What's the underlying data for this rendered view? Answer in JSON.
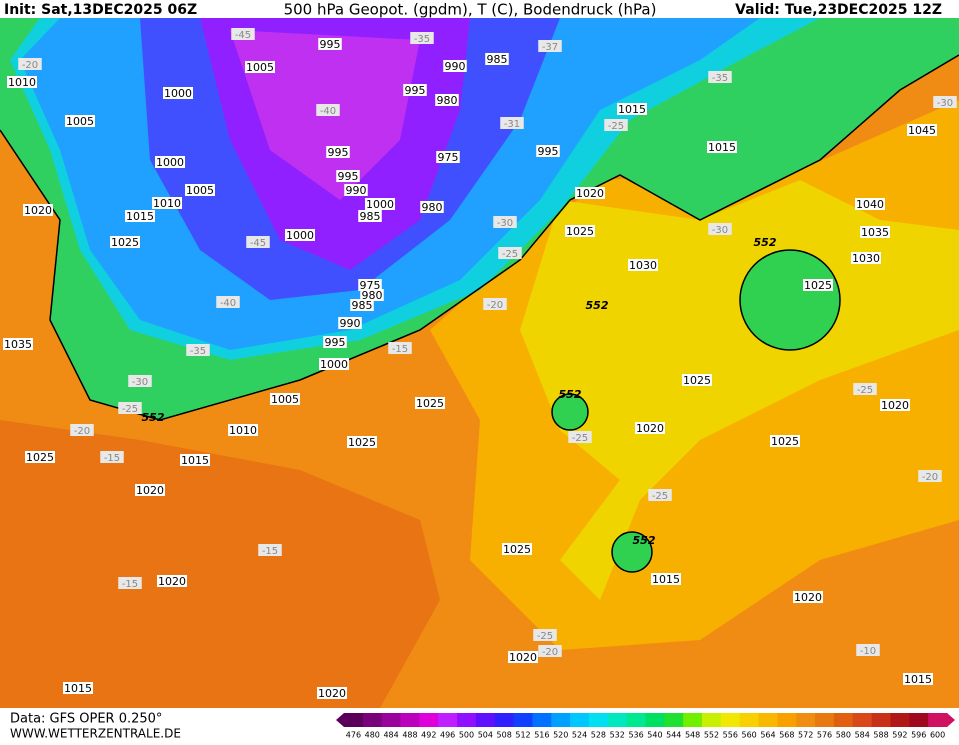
{
  "header": {
    "init": "Init: Sat,13DEC2025 06Z",
    "title": "500 hPa Geopot. (gpdm), T (C), Bodendruck (hPa)",
    "valid": "Valid: Tue,23DEC2025 12Z"
  },
  "footer": {
    "source": "Data: GFS OPER 0.250°",
    "site": "WWW.WETTERZENTRALE.DE"
  },
  "colorbar": {
    "ticks": [
      476,
      480,
      484,
      488,
      492,
      496,
      500,
      504,
      508,
      512,
      516,
      520,
      524,
      528,
      532,
      536,
      540,
      544,
      548,
      552,
      556,
      560,
      564,
      568,
      572,
      576,
      580,
      584,
      588,
      592,
      596,
      600
    ],
    "colors": [
      "#5a005a",
      "#780078",
      "#9a009a",
      "#bb00bb",
      "#dd00dd",
      "#c020ff",
      "#9010ff",
      "#6010ff",
      "#3020ff",
      "#1040ff",
      "#0070ff",
      "#00a0ff",
      "#00c8ff",
      "#00e0f0",
      "#00e8c0",
      "#00e890",
      "#00e060",
      "#20e030",
      "#70f000",
      "#c8f000",
      "#f0e800",
      "#f8d000",
      "#f8b800",
      "#f8a000",
      "#f08c10",
      "#e87810",
      "#e06010",
      "#d84818",
      "#c83018",
      "#b01818",
      "#a00820",
      "#d01060"
    ]
  },
  "pressure_labels": [
    "995",
    "1005",
    "1000",
    "1010",
    "1005",
    "990",
    "985",
    "995",
    "980",
    "975",
    "995",
    "995",
    "990",
    "985",
    "1000",
    "980",
    "1000",
    "975",
    "980",
    "985",
    "990",
    "995",
    "1000",
    "1005",
    "1010",
    "1015",
    "1020",
    "1025",
    "1015",
    "1025",
    "1020",
    "1005",
    "1010",
    "1000",
    "1035",
    "995",
    "1015",
    "1015",
    "1020",
    "1025",
    "1030",
    "1045",
    "1040",
    "1035",
    "1030",
    "1025",
    "1025",
    "1020",
    "1025",
    "1020",
    "1025",
    "1025",
    "1025",
    "1015",
    "1020",
    "1020",
    "1015",
    "1020",
    "1015",
    "1020"
  ],
  "temperature_labels": [
    "-45",
    "-35",
    "-37",
    "-20",
    "-40",
    "-31",
    "-25",
    "-35",
    "-30",
    "-45",
    "-40",
    "-30",
    "-25",
    "-30",
    "-20",
    "-35",
    "-30",
    "-25",
    "-15",
    "-20",
    "-15",
    "-25",
    "-25",
    "-25",
    "-20",
    "-15",
    "-15",
    "-25",
    "-20",
    "-10"
  ],
  "height_labels": [
    "552",
    "552",
    "552",
    "552",
    "552"
  ]
}
